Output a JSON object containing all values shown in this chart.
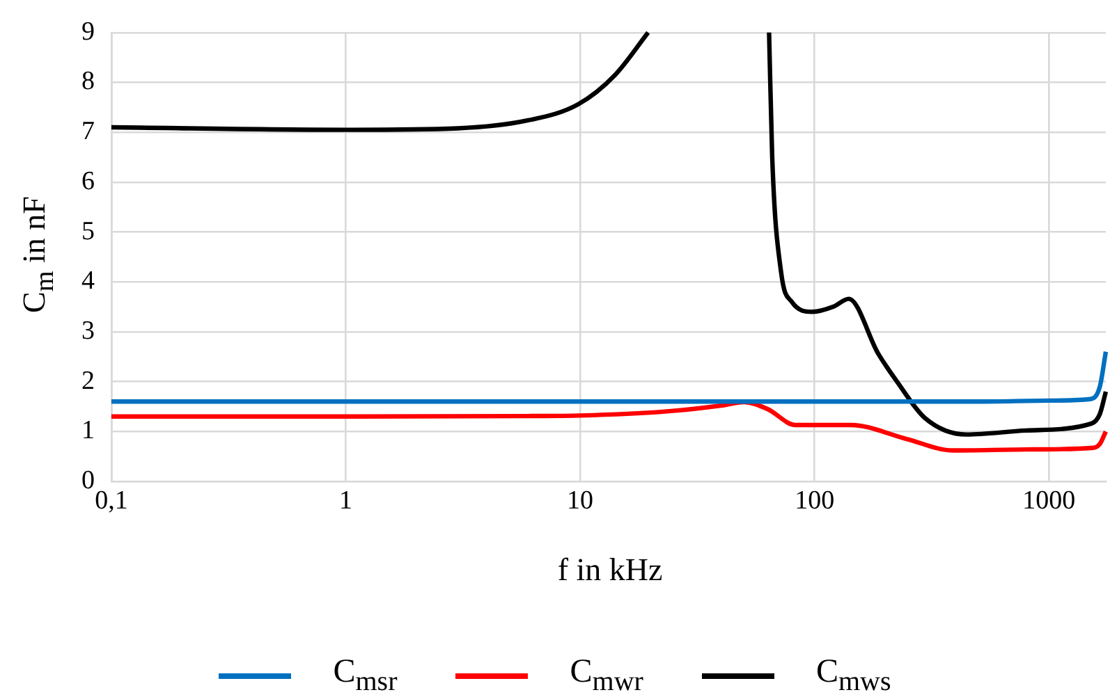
{
  "chart_data": {
    "type": "line",
    "xlabel": "f in kHz",
    "ylabel": "C$_{m}$ in nF",
    "log": "x",
    "grid": true,
    "legend": "bottom",
    "marker": "none",
    "line_style": "solid",
    "xlim": [
      0.1,
      1750
    ],
    "xticks": [
      {
        "value": 0.1,
        "label": "0,1"
      },
      1,
      10,
      100,
      1000
    ],
    "ylim": [
      0,
      9
    ],
    "yticks": [
      0,
      1,
      2,
      3,
      4,
      5,
      6,
      7,
      8,
      9
    ],
    "series": [
      {
        "name": "C$_{msr}$",
        "color": "#0070c0",
        "x": [
          0.1,
          1,
          10,
          100,
          500,
          1000,
          1500,
          1650,
          1750
        ],
        "values": [
          1.6,
          1.6,
          1.6,
          1.6,
          1.6,
          1.62,
          1.65,
          1.9,
          2.6
        ]
      },
      {
        "name": "C$_{mwr}$",
        "color": "#ff0000",
        "x": [
          0.1,
          1,
          6,
          10,
          23,
          40,
          50,
          63,
          83,
          143,
          247,
          390,
          800,
          1520,
          1650,
          1750
        ],
        "values": [
          1.3,
          1.3,
          1.31,
          1.32,
          1.4,
          1.52,
          1.59,
          1.45,
          1.13,
          1.13,
          0.85,
          0.62,
          0.64,
          0.67,
          0.75,
          1.0
        ]
      },
      {
        "name": "C$_{mws}$",
        "color": "#000000",
        "x": [
          0.1,
          1,
          3,
          6,
          9.8,
          14.1,
          19.5,
          30,
          64,
          66,
          72,
          80,
          98,
          120,
          140,
          187,
          225,
          296,
          445,
          800,
          1520,
          1650,
          1750
        ],
        "values": [
          7.1,
          7.05,
          7.08,
          7.24,
          7.56,
          8.15,
          9,
          null,
          9,
          6.5,
          4.2,
          3.6,
          3.4,
          3.5,
          3.66,
          2.56,
          2.0,
          1.27,
          0.94,
          1.02,
          1.16,
          1.35,
          1.8
        ]
      }
    ]
  }
}
